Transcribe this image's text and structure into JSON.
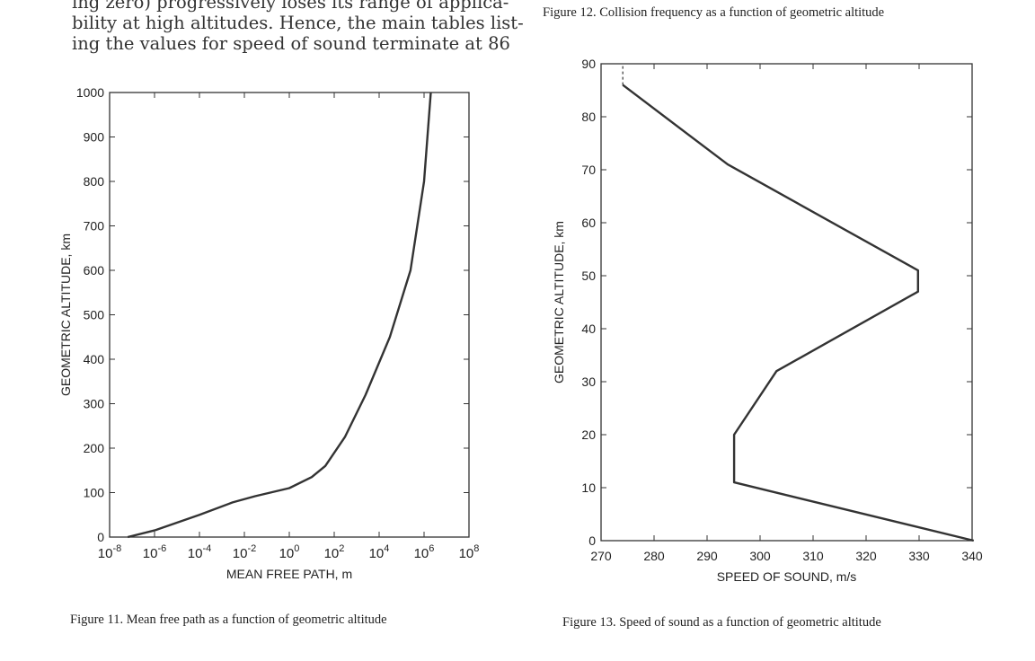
{
  "text_lines": [
    "ing zero) progressively loses its range of applica-",
    "bility at high altitudes. Hence, the main tables list-",
    "ing the values for speed of sound terminate at 86"
  ],
  "captions": {
    "fig11": "Figure 11.  Mean free path as a function of geometric altitude",
    "fig12": "Figure 12.  Collision frequency as a function of geometric altitude",
    "fig13": "Figure 13.  Speed of sound as a function of geometric altitude"
  },
  "chart_data": [
    {
      "type": "line",
      "x_scale": "log10",
      "xlabel": "MEAN FREE PATH, m",
      "ylabel": "GEOMETRIC ALTITUDE, km",
      "xlim": [
        1e-08,
        100000000.0
      ],
      "ylim": [
        0,
        1000
      ],
      "x_ticks": [
        {
          "base": "10",
          "exp": "-8"
        },
        {
          "base": "10",
          "exp": "-6"
        },
        {
          "base": "10",
          "exp": "-4"
        },
        {
          "base": "10",
          "exp": "-2"
        },
        {
          "base": "10",
          "exp": "0"
        },
        {
          "base": "10",
          "exp": "2"
        },
        {
          "base": "10",
          "exp": "4"
        },
        {
          "base": "10",
          "exp": "6"
        },
        {
          "base": "10",
          "exp": "8"
        }
      ],
      "y_ticks": [
        "0",
        "100",
        "200",
        "300",
        "400",
        "500",
        "600",
        "700",
        "800",
        "900",
        "1000"
      ],
      "series": [
        {
          "values": [
            {
              "x": 6.4e-08,
              "y": 0
            },
            {
              "x": 1e-06,
              "y": 15
            },
            {
              "x": 0.0001,
              "y": 50
            },
            {
              "x": 0.003,
              "y": 78
            },
            {
              "x": 0.03,
              "y": 92
            },
            {
              "x": 1.0,
              "y": 110
            },
            {
              "x": 10,
              "y": 135
            },
            {
              "x": 40,
              "y": 160
            },
            {
              "x": 300,
              "y": 225
            },
            {
              "x": 2500,
              "y": 320
            },
            {
              "x": 30000,
              "y": 450
            },
            {
              "x": 250000,
              "y": 600
            },
            {
              "x": 1000000,
              "y": 800
            },
            {
              "x": 2000000,
              "y": 1000
            }
          ]
        }
      ]
    },
    {
      "type": "line",
      "xlabel": "SPEED OF SOUND, m/s",
      "ylabel": "GEOMETRIC ALTITUDE, km",
      "xlim": [
        270,
        340
      ],
      "ylim": [
        0,
        90
      ],
      "x_ticks": [
        "270",
        "280",
        "290",
        "300",
        "310",
        "320",
        "330",
        "340"
      ],
      "y_ticks": [
        "0",
        "10",
        "20",
        "30",
        "40",
        "50",
        "60",
        "70",
        "80",
        "90"
      ],
      "series": [
        {
          "values": [
            {
              "x": 340.3,
              "y": 0
            },
            {
              "x": 295.1,
              "y": 11
            },
            {
              "x": 295.1,
              "y": 20
            },
            {
              "x": 303.1,
              "y": 32
            },
            {
              "x": 329.8,
              "y": 47
            },
            {
              "x": 329.8,
              "y": 51
            },
            {
              "x": 293.9,
              "y": 71
            },
            {
              "x": 274.1,
              "y": 86
            }
          ]
        },
        {
          "style": "dashed",
          "values": [
            {
              "x": 274.1,
              "y": 86
            },
            {
              "x": 274.1,
              "y": 90
            }
          ]
        }
      ]
    }
  ]
}
